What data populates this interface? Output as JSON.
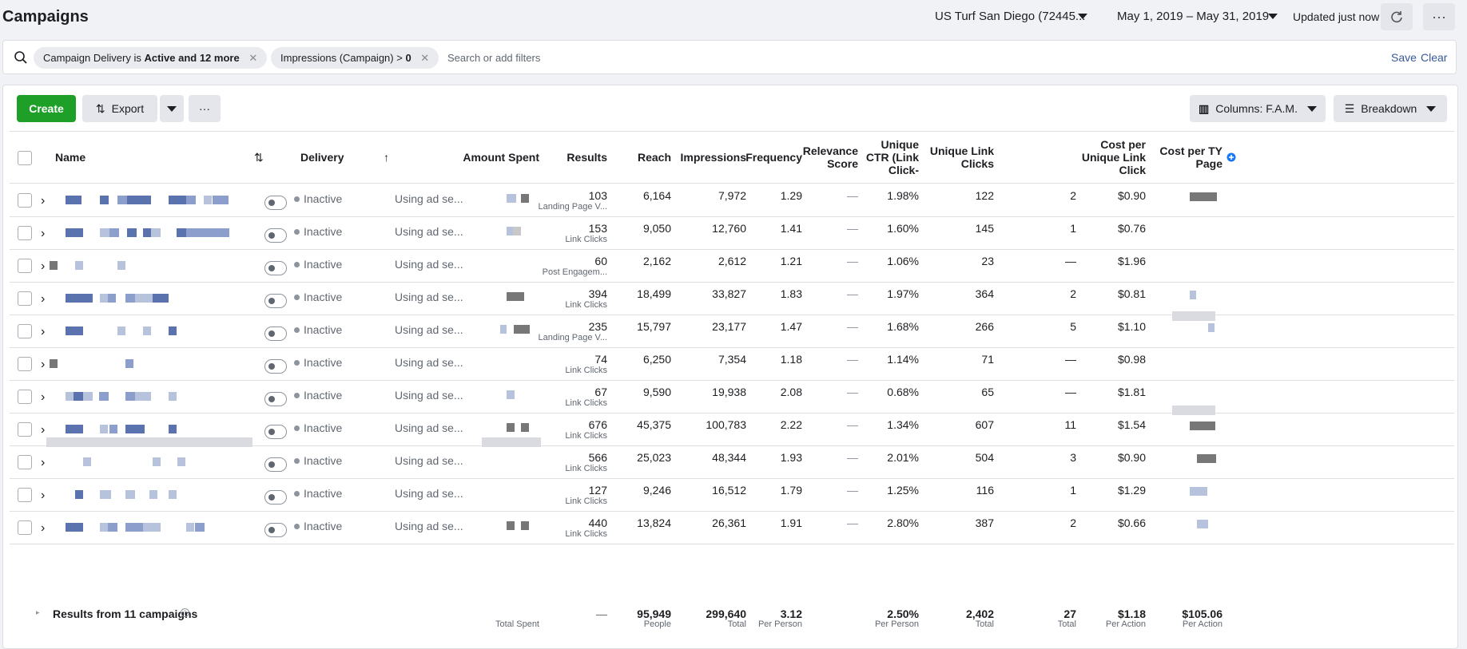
{
  "header": {
    "title": "Campaigns",
    "account": "US Turf San Diego (72445...",
    "date_range": "May 1, 2019 – May 31, 2019",
    "updated": "Updated just now"
  },
  "filters": {
    "chip1_prefix": "Campaign Delivery",
    "chip1_is": "is",
    "chip1_value": "Active and 12 more",
    "chip2_prefix": "Impressions (Campaign) >",
    "chip2_value": "0",
    "search_placeholder": "Search or add filters",
    "save": "Save",
    "clear": "Clear"
  },
  "toolbar": {
    "create": "Create",
    "export": "Export",
    "columns": "Columns: F.A.M.",
    "breakdown": "Breakdown"
  },
  "columns": {
    "name": "Name",
    "delivery": "Delivery",
    "amount_spent": "Amount Spent",
    "results": "Results",
    "reach": "Reach",
    "impressions": "Impressions",
    "frequency": "Frequency",
    "relevance_1": "Relevance",
    "relevance_2": "Score",
    "unique_ctr_1": "Unique",
    "unique_ctr_2": "CTR (Link",
    "unique_ctr_3": "Click-",
    "unique_link_1": "Unique Link",
    "unique_link_2": "Clicks",
    "cost_unique_1": "Cost per",
    "cost_unique_2": "Unique Link",
    "cost_unique_3": "Click",
    "cost_ty_1": "Cost per TY",
    "cost_ty_2": "Page"
  },
  "rows": [
    {
      "delivery": "Inactive",
      "bid": "Using ad se...",
      "results": "103",
      "result_type": "Landing Page V...",
      "reach": "6,164",
      "impressions": "7,972",
      "frequency": "1.29",
      "relevance": "—",
      "ctr": "1.98%",
      "unique_clicks": "122",
      "extra": "2",
      "cost_unique": "$0.90"
    },
    {
      "delivery": "Inactive",
      "bid": "Using ad se...",
      "results": "153",
      "result_type": "Link Clicks",
      "reach": "9,050",
      "impressions": "12,760",
      "frequency": "1.41",
      "relevance": "—",
      "ctr": "1.60%",
      "unique_clicks": "145",
      "extra": "1",
      "cost_unique": "$0.76"
    },
    {
      "delivery": "Inactive",
      "bid": "Using ad se...",
      "results": "60",
      "result_type": "Post Engagem...",
      "reach": "2,162",
      "impressions": "2,612",
      "frequency": "1.21",
      "relevance": "—",
      "ctr": "1.06%",
      "unique_clicks": "23",
      "extra": "—",
      "cost_unique": "$1.96"
    },
    {
      "delivery": "Inactive",
      "bid": "Using ad se...",
      "results": "394",
      "result_type": "Link Clicks",
      "reach": "18,499",
      "impressions": "33,827",
      "frequency": "1.83",
      "relevance": "—",
      "ctr": "1.97%",
      "unique_clicks": "364",
      "extra": "2",
      "cost_unique": "$0.81"
    },
    {
      "delivery": "Inactive",
      "bid": "Using ad se...",
      "results": "235",
      "result_type": "Landing Page V...",
      "reach": "15,797",
      "impressions": "23,177",
      "frequency": "1.47",
      "relevance": "—",
      "ctr": "1.68%",
      "unique_clicks": "266",
      "extra": "5",
      "cost_unique": "$1.10"
    },
    {
      "delivery": "Inactive",
      "bid": "Using ad se...",
      "results": "74",
      "result_type": "Link Clicks",
      "reach": "6,250",
      "impressions": "7,354",
      "frequency": "1.18",
      "relevance": "—",
      "ctr": "1.14%",
      "unique_clicks": "71",
      "extra": "—",
      "cost_unique": "$0.98"
    },
    {
      "delivery": "Inactive",
      "bid": "Using ad se...",
      "results": "67",
      "result_type": "Link Clicks",
      "reach": "9,590",
      "impressions": "19,938",
      "frequency": "2.08",
      "relevance": "—",
      "ctr": "0.68%",
      "unique_clicks": "65",
      "extra": "—",
      "cost_unique": "$1.81"
    },
    {
      "delivery": "Inactive",
      "bid": "Using ad se...",
      "results": "676",
      "result_type": "Link Clicks",
      "reach": "45,375",
      "impressions": "100,783",
      "frequency": "2.22",
      "relevance": "—",
      "ctr": "1.34%",
      "unique_clicks": "607",
      "extra": "11",
      "cost_unique": "$1.54"
    },
    {
      "delivery": "Inactive",
      "bid": "Using ad se...",
      "results": "566",
      "result_type": "Link Clicks",
      "reach": "25,023",
      "impressions": "48,344",
      "frequency": "1.93",
      "relevance": "—",
      "ctr": "2.01%",
      "unique_clicks": "504",
      "extra": "3",
      "cost_unique": "$0.90"
    },
    {
      "delivery": "Inactive",
      "bid": "Using ad se...",
      "results": "127",
      "result_type": "Link Clicks",
      "reach": "9,246",
      "impressions": "16,512",
      "frequency": "1.79",
      "relevance": "—",
      "ctr": "1.25%",
      "unique_clicks": "116",
      "extra": "1",
      "cost_unique": "$1.29"
    },
    {
      "delivery": "Inactive",
      "bid": "Using ad se...",
      "results": "440",
      "result_type": "Link Clicks",
      "reach": "13,824",
      "impressions": "26,361",
      "frequency": "1.91",
      "relevance": "—",
      "ctr": "2.80%",
      "unique_clicks": "387",
      "extra": "2",
      "cost_unique": "$0.66"
    }
  ],
  "footer": {
    "label": "Results from 11 campaigns",
    "total_spent_label": "Total Spent",
    "results": "—",
    "reach": "95,949",
    "reach_sub": "People",
    "impressions": "299,640",
    "impressions_sub": "Total",
    "frequency": "3.12",
    "frequency_sub": "Per Person",
    "ctr": "2.50%",
    "ctr_sub": "Per Person",
    "unique_clicks": "2,402",
    "unique_clicks_sub": "Total",
    "extra": "27",
    "extra_sub": "Total",
    "cost_unique": "$1.18",
    "cost_unique_sub": "Per Action",
    "cost_ty": "$105.06",
    "cost_ty_sub": "Per Action"
  },
  "colors": {
    "create_green": "#1ea028",
    "link_blue": "#385898",
    "redaction_blue": "#5a72ad"
  }
}
